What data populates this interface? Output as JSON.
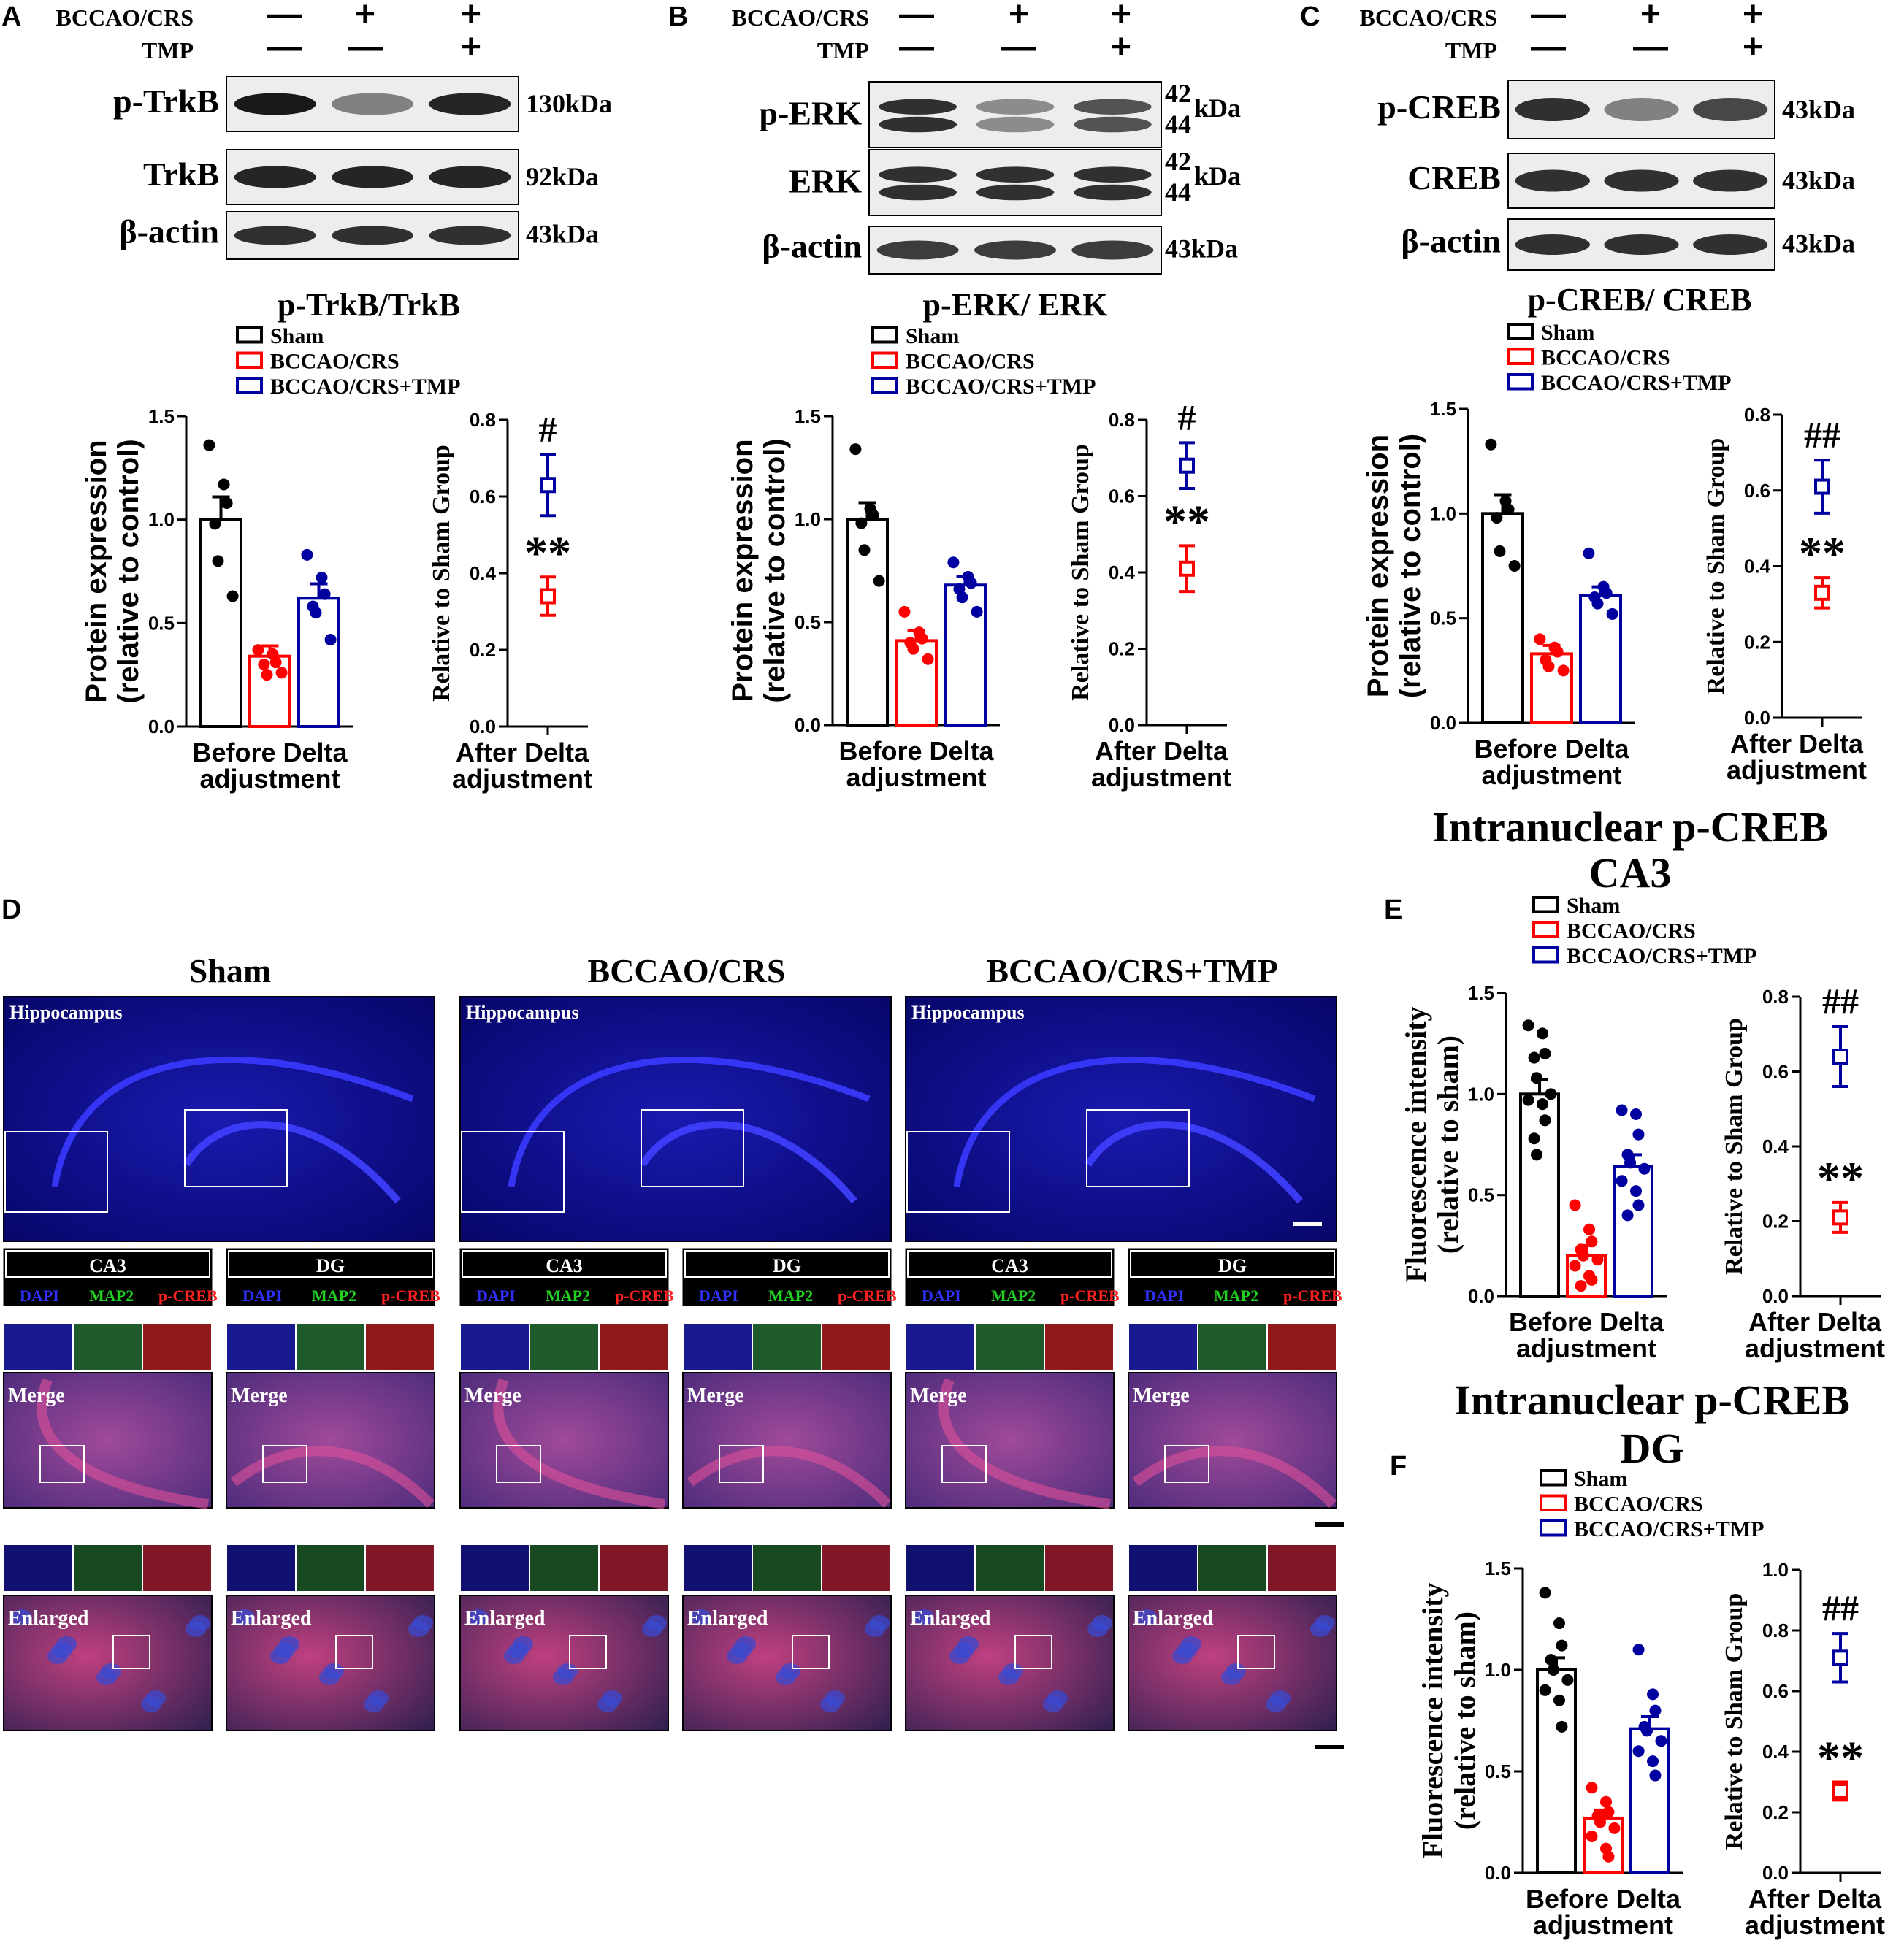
{
  "legend": {
    "sham": "Sham",
    "model": "BCCAO/CRS",
    "treat": "BCCAO/CRS+TMP",
    "sham_color": "#000000",
    "model_color": "#ff0000",
    "treat_color": "#0000a0"
  },
  "blot_panels": [
    {
      "letter": "A",
      "row1_label": "BCCAO/CRS",
      "row2_label": "TMP",
      "row1_marks": [
        "—",
        "+",
        "+"
      ],
      "row2_marks": [
        "—",
        "—",
        "+"
      ],
      "bands": [
        {
          "name": "p-TrkB",
          "size": "130kDa"
        },
        {
          "name": "TrkB",
          "size": "92kDa"
        },
        {
          "name": "β-actin",
          "size": "43kDa"
        }
      ],
      "title": "p-TrkB/TrkB"
    },
    {
      "letter": "B",
      "row1_label": "BCCAO/CRS",
      "row2_label": "TMP",
      "row1_marks": [
        "—",
        "+",
        "+"
      ],
      "row2_marks": [
        "—",
        "—",
        "+"
      ],
      "bands": [
        {
          "name": "p-ERK",
          "size": "kDa",
          "size_top": "42",
          "size_bot": "44"
        },
        {
          "name": "ERK",
          "size": "kDa",
          "size_top": "42",
          "size_bot": "44"
        },
        {
          "name": "β-actin",
          "size": "43kDa"
        }
      ],
      "title": "p-ERK/ ERK"
    },
    {
      "letter": "C",
      "row1_label": "BCCAO/CRS",
      "row2_label": "TMP",
      "row1_marks": [
        "—",
        "+",
        "+"
      ],
      "row2_marks": [
        "—",
        "—",
        "+"
      ],
      "bands": [
        {
          "name": "p-CREB",
          "size": "43kDa"
        },
        {
          "name": "CREB",
          "size": "43kDa"
        },
        {
          "name": "β-actin",
          "size": "43kDa"
        }
      ],
      "title": "p-CREB/ CREB"
    }
  ],
  "panel_d": {
    "letter": "D",
    "group_titles": [
      "Sham",
      "BCCAO/CRS",
      "BCCAO/CRS+TMP"
    ],
    "hippocampus_label": "Hippocampus",
    "region_labels": [
      "CA3",
      "DG"
    ],
    "stain_labels": [
      "DAPI",
      "MAP2",
      "p-CREB"
    ],
    "merge_label": "Merge",
    "enlarged_label": "Enlarged"
  },
  "panel_e": {
    "letter": "E",
    "title_line1": "Intranuclear p-CREB",
    "title_line2": "CA3"
  },
  "panel_f": {
    "letter": "F",
    "title_line1": "Intranuclear p-CREB",
    "title_line2": "DG"
  },
  "chart_data": [
    {
      "panel": "A",
      "type": "bar",
      "categories": [
        "Sham",
        "BCCAO/CRS",
        "BCCAO/CRS+TMP"
      ],
      "values": [
        1.0,
        0.34,
        0.62
      ],
      "errors": [
        0.11,
        0.05,
        0.07
      ],
      "points": [
        [
          1.36,
          1.17,
          1.08,
          0.98,
          0.8,
          0.63
        ],
        [
          0.37,
          0.35,
          0.31,
          0.3,
          0.25,
          0.26
        ],
        [
          0.83,
          0.72,
          0.64,
          0.58,
          0.55,
          0.42
        ]
      ],
      "ylabel": "Protein expression (relative to control)",
      "xlabel": "Before Delta adjustment",
      "ylim": [
        0,
        1.5
      ],
      "yticks": [
        "0.0",
        "0.5",
        "1.0",
        "1.5"
      ],
      "delta": {
        "ylabel": "Relative to Sham Group",
        "xlabel": "After Delta adjustment",
        "ylim": [
          0,
          0.8
        ],
        "yticks": [
          "0.0",
          "0.2",
          "0.4",
          "0.6",
          "0.8"
        ],
        "model": 0.34,
        "model_err": 0.05,
        "treat": 0.63,
        "treat_err": 0.08,
        "model_sig": "**",
        "treat_sig": "#"
      }
    },
    {
      "panel": "B",
      "type": "bar",
      "categories": [
        "Sham",
        "BCCAO/CRS",
        "BCCAO/CRS+TMP"
      ],
      "values": [
        1.0,
        0.41,
        0.68
      ],
      "errors": [
        0.08,
        0.05,
        0.04
      ],
      "points": [
        [
          1.34,
          1.05,
          1.02,
          0.98,
          0.85,
          0.7
        ],
        [
          0.55,
          0.45,
          0.42,
          0.4,
          0.37,
          0.32
        ],
        [
          0.79,
          0.72,
          0.69,
          0.66,
          0.62,
          0.55
        ]
      ],
      "ylabel": "Protein expression (relative to control)",
      "xlabel": "Before Delta adjustment",
      "ylim": [
        0,
        1.5
      ],
      "yticks": [
        "0.0",
        "0.5",
        "1.0",
        "1.5"
      ],
      "delta": {
        "ylabel": "Relative to Sham Group",
        "xlabel": "After Delta adjustment",
        "ylim": [
          0,
          0.8
        ],
        "yticks": [
          "0.0",
          "0.2",
          "0.4",
          "0.6",
          "0.8"
        ],
        "model": 0.41,
        "model_err": 0.06,
        "treat": 0.68,
        "treat_err": 0.06,
        "model_sig": "**",
        "treat_sig": "#"
      }
    },
    {
      "panel": "C",
      "type": "bar",
      "categories": [
        "Sham",
        "BCCAO/CRS",
        "BCCAO/CRS+TMP"
      ],
      "values": [
        1.0,
        0.33,
        0.61
      ],
      "errors": [
        0.09,
        0.04,
        0.04
      ],
      "points": [
        [
          1.33,
          1.06,
          1.02,
          0.98,
          0.82,
          0.75
        ],
        [
          0.4,
          0.36,
          0.34,
          0.3,
          0.27,
          0.25
        ],
        [
          0.81,
          0.65,
          0.62,
          0.6,
          0.57,
          0.52
        ]
      ],
      "ylabel": "Protein expression (relative to control)",
      "xlabel": "Before Delta adjustment",
      "ylim": [
        0,
        1.5
      ],
      "yticks": [
        "0.0",
        "0.5",
        "1.0",
        "1.5"
      ],
      "delta": {
        "ylabel": "Relative to Sham Group",
        "xlabel": "After Delta adjustment",
        "ylim": [
          0,
          0.8
        ],
        "yticks": [
          "0.0",
          "0.2",
          "0.4",
          "0.6",
          "0.8"
        ],
        "model": 0.33,
        "model_err": 0.04,
        "treat": 0.61,
        "treat_err": 0.07,
        "model_sig": "**",
        "treat_sig": "##"
      }
    },
    {
      "panel": "E",
      "type": "bar",
      "categories": [
        "Sham",
        "BCCAO/CRS",
        "BCCAO/CRS+TMP"
      ],
      "values": [
        1.0,
        0.2,
        0.64
      ],
      "errors": [
        0.07,
        0.05,
        0.06
      ],
      "points": [
        [
          1.34,
          1.3,
          1.2,
          1.18,
          1.08,
          1.0,
          0.97,
          0.95,
          0.87,
          0.78,
          0.7
        ],
        [
          0.45,
          0.33,
          0.27,
          0.23,
          0.2,
          0.18,
          0.15,
          0.1,
          0.08,
          0.05
        ],
        [
          0.92,
          0.9,
          0.8,
          0.7,
          0.66,
          0.63,
          0.57,
          0.52,
          0.45,
          0.4
        ]
      ],
      "ylabel": "Fluorescence intensity (relative to sham)",
      "xlabel": "Before Delta adjustment",
      "ylim": [
        0,
        1.5
      ],
      "yticks": [
        "0.0",
        "0.5",
        "1.0",
        "1.5"
      ],
      "delta": {
        "ylabel": "Relative to Sham Group",
        "xlabel": "After Delta adjustment",
        "ylim": [
          0,
          0.8
        ],
        "yticks": [
          "0.0",
          "0.2",
          "0.4",
          "0.6",
          "0.8"
        ],
        "model": 0.21,
        "model_err": 0.04,
        "treat": 0.64,
        "treat_err": 0.08,
        "model_sig": "**",
        "treat_sig": "##"
      }
    },
    {
      "panel": "F",
      "type": "bar",
      "categories": [
        "Sham",
        "BCCAO/CRS",
        "BCCAO/CRS+TMP"
      ],
      "values": [
        1.0,
        0.27,
        0.71
      ],
      "errors": [
        0.06,
        0.04,
        0.06
      ],
      "points": [
        [
          1.38,
          1.23,
          1.12,
          1.05,
          1.0,
          0.95,
          0.9,
          0.85,
          0.72
        ],
        [
          0.42,
          0.35,
          0.3,
          0.28,
          0.25,
          0.22,
          0.18,
          0.12,
          0.08
        ],
        [
          1.1,
          0.88,
          0.8,
          0.72,
          0.7,
          0.65,
          0.6,
          0.55,
          0.48
        ]
      ],
      "ylabel": "Fluorescence intensity (relative to sham)",
      "xlabel": "Before Delta adjustment",
      "ylim": [
        0,
        1.5
      ],
      "yticks": [
        "0.0",
        "0.5",
        "1.0",
        "1.5"
      ],
      "delta": {
        "ylabel": "Relative to Sham Group",
        "xlabel": "After Delta adjustment",
        "ylim": [
          0,
          1.0
        ],
        "yticks": [
          "0.0",
          "0.2",
          "0.4",
          "0.6",
          "0.8",
          "1.0"
        ],
        "model": 0.27,
        "model_err": 0.03,
        "treat": 0.71,
        "treat_err": 0.08,
        "model_sig": "**",
        "treat_sig": "##"
      }
    }
  ]
}
